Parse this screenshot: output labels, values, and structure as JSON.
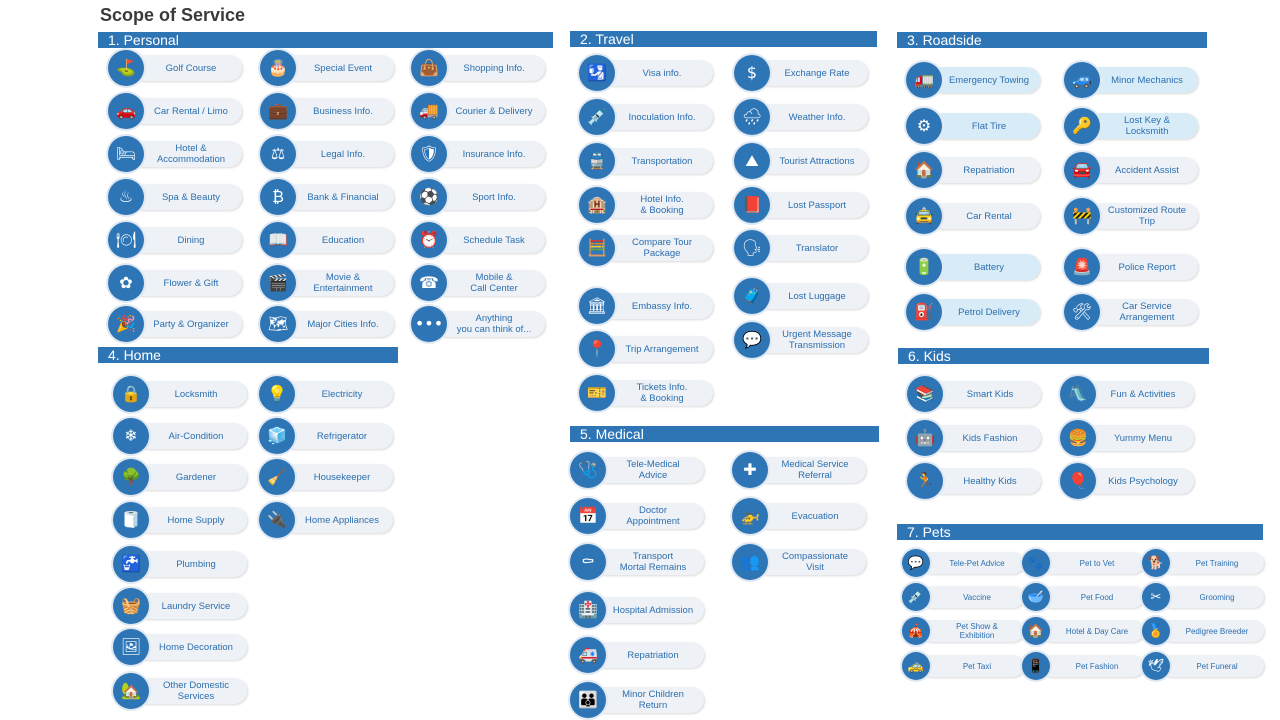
{
  "title": "Scope of Service",
  "sections": [
    {
      "id": "personal",
      "title": "1. Personal",
      "items": [
        {
          "label": "Golf Course",
          "icon": "golf-icon",
          "glyph": "⛳"
        },
        {
          "label": "Special Event",
          "icon": "cake-icon",
          "glyph": "🎂"
        },
        {
          "label": "Shopping Info.",
          "icon": "shopping-bag-icon",
          "glyph": "👜"
        },
        {
          "label": "Car Rental / Limo",
          "icon": "car-icon",
          "glyph": "🚗"
        },
        {
          "label": "Business Info.",
          "icon": "briefcase-icon",
          "glyph": "💼"
        },
        {
          "label": "Courier & Delivery",
          "icon": "truck-icon",
          "glyph": "🚚"
        },
        {
          "label": "Hotel &\nAccommodation",
          "icon": "bed-icon",
          "glyph": "🛏"
        },
        {
          "label": "Legal Info.",
          "icon": "scales-icon",
          "glyph": "⚖"
        },
        {
          "label": "Insurance Info.",
          "icon": "shield-check-icon",
          "glyph": "🛡"
        },
        {
          "label": "Spa & Beauty",
          "icon": "spa-stones-icon",
          "glyph": "♨"
        },
        {
          "label": "Bank & Financial",
          "icon": "bitcoin-icon",
          "glyph": "₿"
        },
        {
          "label": "Sport Info.",
          "icon": "sport-balls-icon",
          "glyph": "⚽"
        },
        {
          "label": "Dining",
          "icon": "dining-plate-icon",
          "glyph": "🍽"
        },
        {
          "label": "Education",
          "icon": "book-icon",
          "glyph": "📖"
        },
        {
          "label": "Schedule Task",
          "icon": "alarm-clock-icon",
          "glyph": "⏰"
        },
        {
          "label": "Flower & Gift",
          "icon": "flower-icon",
          "glyph": "✿"
        },
        {
          "label": "Movie &\nEntertainment",
          "icon": "cinema-icon",
          "glyph": "🎬"
        },
        {
          "label": "Mobile &\nCall Center",
          "icon": "call-center-icon",
          "glyph": "☎"
        },
        {
          "label": "Party & Organizer",
          "icon": "party-icon",
          "glyph": "🎉"
        },
        {
          "label": "Major Cities Info.",
          "icon": "map-icon",
          "glyph": "🗺"
        },
        {
          "label": "Anything\nyou can think of...",
          "icon": "more-dots-icon",
          "glyph": "•••"
        }
      ]
    },
    {
      "id": "travel",
      "title": "2. Travel",
      "items": [
        {
          "label": "Visa info.",
          "icon": "passport-icon",
          "glyph": "🛂"
        },
        {
          "label": "Exchange Rate",
          "icon": "dollar-icon",
          "glyph": "$"
        },
        {
          "label": "Inoculation Info.",
          "icon": "syringe-icon",
          "glyph": "💉"
        },
        {
          "label": "Weather Info.",
          "icon": "cloud-rain-icon",
          "glyph": "🌧"
        },
        {
          "label": "Transportation",
          "icon": "train-icon",
          "glyph": "🚆"
        },
        {
          "label": "Tourist Attractions",
          "icon": "mountain-icon",
          "glyph": "⛰"
        },
        {
          "label": "Hotel Info.\n& Booking",
          "icon": "hotel-city-icon",
          "glyph": "🏨"
        },
        {
          "label": "Lost Passport",
          "icon": "passport-book-icon",
          "glyph": "📕"
        },
        {
          "label": "Compare Tour\nPackage",
          "icon": "calculator-icon",
          "glyph": "🧮"
        },
        {
          "label": "Translator",
          "icon": "translator-icon",
          "glyph": "🗣"
        },
        {
          "label": "Embassy Info.",
          "icon": "embassy-icon",
          "glyph": "🏛"
        },
        {
          "label": "Lost Luggage",
          "icon": "luggage-icon",
          "glyph": "🧳"
        },
        {
          "label": "Trip Arrangement",
          "icon": "route-icon",
          "glyph": "📍"
        },
        {
          "label": "Urgent Message\nTransmission",
          "icon": "chat-bubbles-icon",
          "glyph": "💬"
        },
        {
          "label": "Tickets Info.\n& Booking",
          "icon": "ticket-icon",
          "glyph": "🎫"
        }
      ]
    },
    {
      "id": "roadside",
      "title": "3. Roadside",
      "items": [
        {
          "label": "Emergency Towing",
          "icon": "tow-truck-icon",
          "glyph": "🚛"
        },
        {
          "label": "Minor Mechanics",
          "icon": "car-repair-icon",
          "glyph": "🚙"
        },
        {
          "label": "Flat Tire",
          "icon": "tire-icon",
          "glyph": "⚙"
        },
        {
          "label": "Lost Key &\nLocksmith",
          "icon": "keys-icon",
          "glyph": "🔑"
        },
        {
          "label": "Repatriation",
          "icon": "house-car-icon",
          "glyph": "🏠"
        },
        {
          "label": "Accident Assist",
          "icon": "crashed-car-icon",
          "glyph": "🚘"
        },
        {
          "label": "Car Rental",
          "icon": "car-front-icon",
          "glyph": "🚖"
        },
        {
          "label": "Customized Route\nTrip",
          "icon": "roadblock-icon",
          "glyph": "🚧"
        },
        {
          "label": "Battery",
          "icon": "battery-icon",
          "glyph": "🔋"
        },
        {
          "label": "Police Report",
          "icon": "police-light-icon",
          "glyph": "🚨"
        },
        {
          "label": "Petrol Delivery",
          "icon": "fuel-pump-icon",
          "glyph": "⛽"
        },
        {
          "label": "Car Service\nArrangement",
          "icon": "car-service-icon",
          "glyph": "🛠"
        }
      ]
    },
    {
      "id": "home",
      "title": "4. Home",
      "items": [
        {
          "label": "Locksmith",
          "icon": "padlock-icon",
          "glyph": "🔒"
        },
        {
          "label": "Electricity",
          "icon": "bulb-icon",
          "glyph": "💡"
        },
        {
          "label": "Air-Condition",
          "icon": "air-conditioner-icon",
          "glyph": "❄"
        },
        {
          "label": "Refrigerator",
          "icon": "fridge-icon",
          "glyph": "🧊"
        },
        {
          "label": "Gardener",
          "icon": "tree-icon",
          "glyph": "🌳"
        },
        {
          "label": "Housekeeper",
          "icon": "broom-icon",
          "glyph": "🧹"
        },
        {
          "label": "Home Supply",
          "icon": "toilet-paper-icon",
          "glyph": "🧻"
        },
        {
          "label": "Home Appliances",
          "icon": "blender-icon",
          "glyph": "🔌"
        },
        {
          "label": "Plumbing",
          "icon": "faucet-icon",
          "glyph": "🚰"
        },
        {
          "label": "Laundry Service",
          "icon": "washing-machine-icon",
          "glyph": "🧺"
        },
        {
          "label": "Home Decoration",
          "icon": "decoration-icon",
          "glyph": "🖼"
        },
        {
          "label": "Other Domestic\nServices",
          "icon": "house-icon",
          "glyph": "🏡"
        }
      ]
    },
    {
      "id": "medical",
      "title": "5. Medical",
      "items": [
        {
          "label": "Tele-Medical\nAdvice",
          "icon": "stethoscope-icon",
          "glyph": "🩺"
        },
        {
          "label": "Medical Service\nReferral",
          "icon": "medical-cross-icon",
          "glyph": "✚"
        },
        {
          "label": "Doctor\nAppointment",
          "icon": "calendar-icon",
          "glyph": "📅"
        },
        {
          "label": "Evacuation",
          "icon": "helicopter-icon",
          "glyph": "🚁"
        },
        {
          "label": "Transport\nMortal Remains",
          "icon": "coffin-icon",
          "glyph": "⚰"
        },
        {
          "label": "Compassionate\nVisit",
          "icon": "visit-people-icon",
          "glyph": "👥"
        },
        {
          "label": "Hospital Admission",
          "icon": "hospital-bed-icon",
          "glyph": "🏥"
        },
        {
          "label": "Repatriation",
          "icon": "ambulance-icon",
          "glyph": "🚑"
        },
        {
          "label": "Minor Children\nReturn",
          "icon": "adult-child-icon",
          "glyph": "👪"
        }
      ]
    },
    {
      "id": "kids",
      "title": "6. Kids",
      "items": [
        {
          "label": "Smart Kids",
          "icon": "books-stack-icon",
          "glyph": "📚"
        },
        {
          "label": "Fun & Activities",
          "icon": "playground-icon",
          "glyph": "🛝"
        },
        {
          "label": "Kids Fashion",
          "icon": "robot-toy-icon",
          "glyph": "🤖"
        },
        {
          "label": "Yummy Menu",
          "icon": "menu-board-icon",
          "glyph": "🍔"
        },
        {
          "label": "Healthy Kids",
          "icon": "running-kid-icon",
          "glyph": "🏃"
        },
        {
          "label": "Kids Psychology",
          "icon": "kid-balloon-icon",
          "glyph": "🎈"
        }
      ]
    },
    {
      "id": "pets",
      "title": "7. Pets",
      "items": [
        {
          "label": "Tele-Pet Advice",
          "icon": "pet-chat-icon",
          "glyph": "💬"
        },
        {
          "label": "Pet to Vet",
          "icon": "paw-icon",
          "glyph": "🐾"
        },
        {
          "label": "Pet Training",
          "icon": "dog-training-icon",
          "glyph": "🐕"
        },
        {
          "label": "Vaccine",
          "icon": "pet-syringe-icon",
          "glyph": "💉"
        },
        {
          "label": "Pet Food",
          "icon": "pet-bowl-icon",
          "glyph": "🥣"
        },
        {
          "label": "Grooming",
          "icon": "scissors-icon",
          "glyph": "✂"
        },
        {
          "label": "Pet Show &\nExhibition",
          "icon": "pet-tent-icon",
          "glyph": "🎪"
        },
        {
          "label": "Hotel & Day Care",
          "icon": "pet-house-icon",
          "glyph": "🏠"
        },
        {
          "label": "Pedigree Breeder",
          "icon": "award-ribbon-icon",
          "glyph": "🏅"
        },
        {
          "label": "Pet Taxi",
          "icon": "taxi-icon",
          "glyph": "🚕"
        },
        {
          "label": "Pet Fashion",
          "icon": "pet-phone-icon",
          "glyph": "📱"
        },
        {
          "label": "Pet Funeral",
          "icon": "pet-memorial-icon",
          "glyph": "🕊"
        }
      ]
    }
  ]
}
